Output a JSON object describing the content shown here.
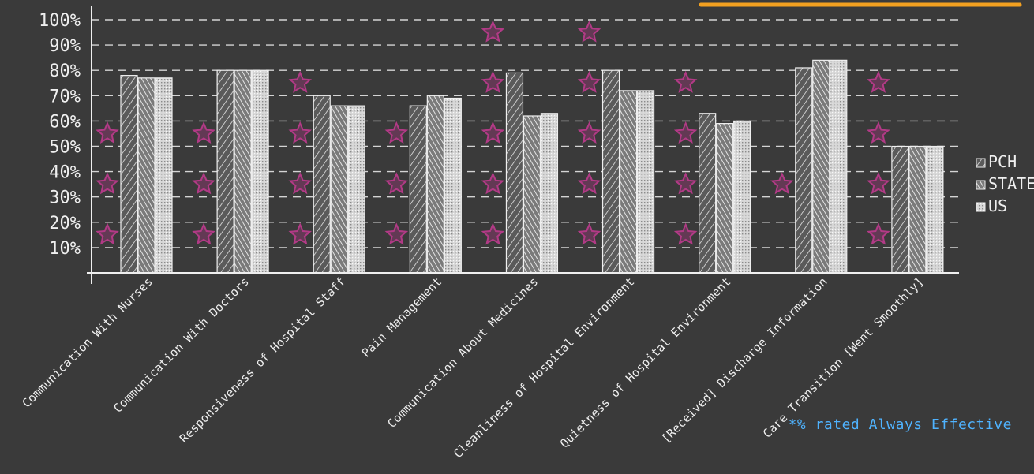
{
  "colors": {
    "background": "#3a3a3a",
    "chalk": "#efefef",
    "star": "#b23a86",
    "accent_underline": "#f2a020",
    "note": "#4fb3ff"
  },
  "chart_data": {
    "type": "bar",
    "categories": [
      "Communication With Nurses",
      "Communication With Doctors",
      "Responsiveness of Hospital Staff",
      "Pain Management",
      "Communication About Medicines",
      "Cleanliness of Hospital Environment",
      "Quietness of Hospital Environment",
      "[Received] Discharge Information",
      "Care Transition [Went Smoothly]"
    ],
    "series": [
      {
        "name": "PCH",
        "values": [
          78,
          80,
          70,
          66,
          79,
          80,
          63,
          81,
          50
        ]
      },
      {
        "name": "STATE",
        "values": [
          77,
          80,
          66,
          70,
          62,
          72,
          59,
          84,
          50
        ]
      },
      {
        "name": "US",
        "values": [
          77,
          80,
          66,
          69,
          63,
          72,
          60,
          84,
          50
        ]
      }
    ],
    "ylim": [
      0,
      100
    ],
    "yticks": [
      "10%",
      "20%",
      "30%",
      "40%",
      "50%",
      "60%",
      "70%",
      "80%",
      "90%",
      "100%"
    ],
    "grid": true,
    "legend_position": "right",
    "stars": [
      [
        15,
        35,
        55
      ],
      [
        15,
        35,
        55
      ],
      [
        15,
        35,
        55,
        75
      ],
      [
        15,
        35,
        55
      ],
      [
        15,
        35,
        55,
        75,
        95
      ],
      [
        15,
        35,
        55,
        75,
        95
      ],
      [
        15,
        35,
        55,
        75
      ],
      [
        35
      ],
      [
        15,
        35,
        55,
        75
      ]
    ]
  },
  "footnote": "*% rated Always Effective"
}
